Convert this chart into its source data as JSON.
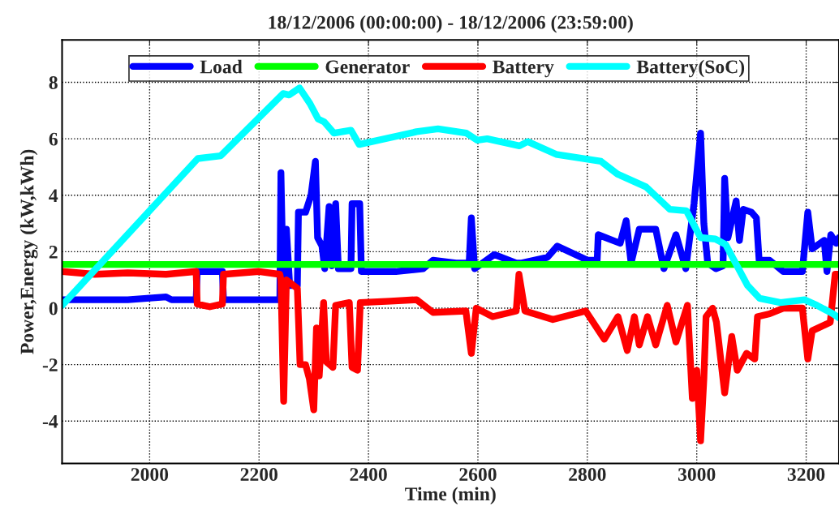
{
  "chart_data": {
    "type": "line",
    "title": "18/12/2006 (00:00:00) - 18/12/2006 (23:59:00)",
    "xlabel": "Time (min)",
    "ylabel": "Power,Energy (kW,kWh)",
    "xlim": [
      1840,
      3260
    ],
    "xticks": [
      2000,
      2200,
      2400,
      2600,
      2800,
      3000,
      3200
    ],
    "ylim": [
      -5.5,
      9.5
    ],
    "yticks": [
      -4,
      -2,
      0,
      2,
      4,
      6,
      8
    ],
    "grid": true,
    "legend": "top",
    "line_style": "solid",
    "marker": "none",
    "series": [
      {
        "name": "Load",
        "color": "#0000ff",
        "x": [
          1840,
          1900,
          1960,
          2030,
          2040,
          2085,
          2087,
          2133,
          2135,
          2238,
          2240,
          2244,
          2250,
          2256,
          2270,
          2272,
          2285,
          2295,
          2303,
          2307,
          2315,
          2320,
          2328,
          2333,
          2340,
          2345,
          2368,
          2370,
          2384,
          2387,
          2450,
          2500,
          2518,
          2560,
          2584,
          2588,
          2594,
          2630,
          2670,
          2680,
          2727,
          2745,
          2800,
          2818,
          2820,
          2860,
          2871,
          2880,
          2895,
          2925,
          2940,
          2962,
          2980,
          2995,
          3007,
          3013,
          3020,
          3035,
          3048,
          3051,
          3057,
          3072,
          3078,
          3085,
          3100,
          3109,
          3114,
          3133,
          3158,
          3193,
          3203,
          3211,
          3233,
          3238,
          3245,
          3255,
          3260
        ],
        "values": [
          0.3,
          0.3,
          0.3,
          0.4,
          0.3,
          0.3,
          1.3,
          1.3,
          0.3,
          0.3,
          4.8,
          1.0,
          2.8,
          0.8,
          0.8,
          3.4,
          3.4,
          4.0,
          5.2,
          2.5,
          2.2,
          1.4,
          3.6,
          1.5,
          3.7,
          1.4,
          1.4,
          3.7,
          3.7,
          1.3,
          1.3,
          1.4,
          1.7,
          1.6,
          1.6,
          3.2,
          1.4,
          1.9,
          1.6,
          1.6,
          1.8,
          2.2,
          1.7,
          1.7,
          2.6,
          2.3,
          3.1,
          1.6,
          2.8,
          2.8,
          1.4,
          2.6,
          1.4,
          3.7,
          6.2,
          3.0,
          1.6,
          1.4,
          1.5,
          4.6,
          2.5,
          3.8,
          2.4,
          3.5,
          3.4,
          3.2,
          1.7,
          1.7,
          1.3,
          1.3,
          3.4,
          2.1,
          2.4,
          1.3,
          2.6,
          2.3,
          2.5
        ]
      },
      {
        "name": "Generator",
        "color": "#00ff00",
        "x": [
          1840,
          3260
        ],
        "values": [
          1.55,
          1.55
        ]
      },
      {
        "name": "Battery",
        "color": "#ff0000",
        "x": [
          1840,
          1900,
          1960,
          2030,
          2085,
          2087,
          2110,
          2133,
          2135,
          2200,
          2238,
          2240,
          2245,
          2250,
          2270,
          2275,
          2285,
          2292,
          2300,
          2305,
          2310,
          2318,
          2323,
          2335,
          2340,
          2365,
          2370,
          2380,
          2385,
          2440,
          2488,
          2518,
          2578,
          2588,
          2597,
          2627,
          2670,
          2675,
          2686,
          2737,
          2797,
          2831,
          2856,
          2873,
          2886,
          2895,
          2910,
          2925,
          2946,
          2962,
          2983,
          2992,
          3000,
          3007,
          3013,
          3017,
          3029,
          3036,
          3051,
          3064,
          3074,
          3091,
          3106,
          3111,
          3133,
          3158,
          3193,
          3203,
          3211,
          3244,
          3253,
          3260
        ],
        "values": [
          1.3,
          1.2,
          1.25,
          1.2,
          1.3,
          0.15,
          0.05,
          0.15,
          1.2,
          1.3,
          1.2,
          1.0,
          -3.3,
          1.0,
          0.7,
          -2.0,
          -2.0,
          -2.5,
          -3.6,
          -0.7,
          -2.4,
          0.2,
          -1.9,
          -2.1,
          0.1,
          0.2,
          -2.1,
          -2.2,
          0.2,
          0.25,
          0.3,
          -0.15,
          -0.1,
          -1.6,
          0.0,
          -0.3,
          -0.1,
          1.2,
          -0.1,
          -0.4,
          -0.1,
          -1.1,
          -0.3,
          -1.5,
          -0.3,
          -1.3,
          -0.3,
          -1.3,
          0.1,
          -1.2,
          0.1,
          -3.2,
          -2.2,
          -4.7,
          -2.5,
          -0.3,
          0.0,
          -0.5,
          -3.0,
          -1.0,
          -2.2,
          -1.6,
          -1.8,
          -0.3,
          -0.2,
          0.0,
          0.0,
          -1.8,
          -0.8,
          -0.5,
          1.2,
          1.2
        ]
      },
      {
        "name": "Battery(SoC)",
        "color": "#00ffff",
        "x": [
          1840,
          2088,
          2130,
          2244,
          2255,
          2274,
          2293,
          2308,
          2319,
          2337,
          2368,
          2383,
          2488,
          2527,
          2579,
          2599,
          2617,
          2676,
          2691,
          2743,
          2825,
          2855,
          2907,
          2951,
          2981,
          3007,
          3034,
          3053,
          3093,
          3115,
          3153,
          3197,
          3220,
          3249,
          3260
        ],
        "values": [
          0.1,
          5.3,
          5.4,
          7.6,
          7.55,
          7.8,
          7.25,
          6.7,
          6.6,
          6.2,
          6.3,
          5.8,
          6.25,
          6.35,
          6.2,
          5.95,
          6.0,
          5.75,
          5.9,
          5.45,
          5.2,
          4.75,
          4.3,
          3.5,
          3.45,
          2.5,
          2.45,
          2.25,
          0.8,
          0.35,
          0.2,
          0.3,
          0.1,
          -0.2,
          -0.35
        ]
      }
    ]
  }
}
